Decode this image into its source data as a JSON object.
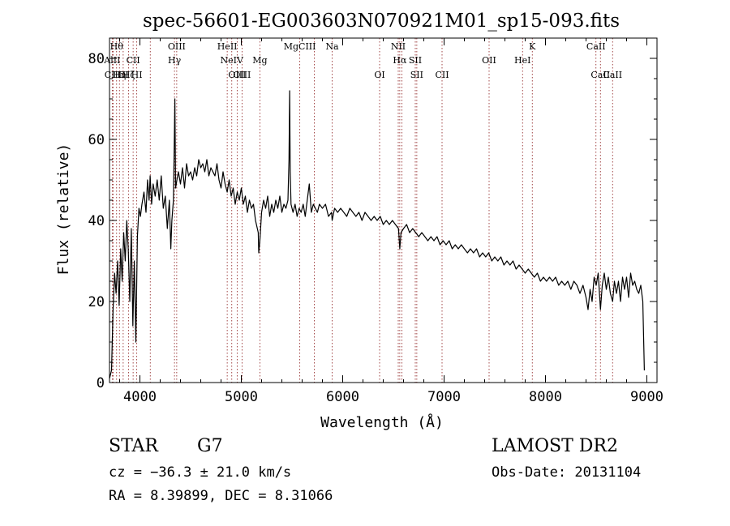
{
  "chart_data": {
    "type": "line",
    "title": "spec-56601-EG003603N070921M01_sp15-093.fits",
    "xlabel": "Wavelength (Å)",
    "ylabel": "Flux (relative)",
    "xlim": [
      3700,
      9100
    ],
    "ylim": [
      0,
      85
    ],
    "xticks": [
      4000,
      5000,
      6000,
      7000,
      8000,
      9000
    ],
    "yticks": [
      0,
      20,
      40,
      60,
      80
    ],
    "grid": false,
    "series": [
      {
        "color": "#000000",
        "points": [
          [
            3700,
            1
          ],
          [
            3720,
            3
          ],
          [
            3735,
            18
          ],
          [
            3750,
            27
          ],
          [
            3765,
            22
          ],
          [
            3780,
            30
          ],
          [
            3795,
            19
          ],
          [
            3810,
            33
          ],
          [
            3825,
            25
          ],
          [
            3840,
            37
          ],
          [
            3855,
            30
          ],
          [
            3870,
            40
          ],
          [
            3885,
            33
          ],
          [
            3900,
            20
          ],
          [
            3915,
            38
          ],
          [
            3930,
            14
          ],
          [
            3945,
            30
          ],
          [
            3960,
            10
          ],
          [
            3975,
            36
          ],
          [
            3990,
            43
          ],
          [
            4005,
            41
          ],
          [
            4020,
            44
          ],
          [
            4040,
            47
          ],
          [
            4060,
            42
          ],
          [
            4075,
            50
          ],
          [
            4090,
            45
          ],
          [
            4101,
            51
          ],
          [
            4115,
            44
          ],
          [
            4130,
            49
          ],
          [
            4150,
            46
          ],
          [
            4170,
            50
          ],
          [
            4190,
            45
          ],
          [
            4210,
            51
          ],
          [
            4230,
            43
          ],
          [
            4250,
            46
          ],
          [
            4270,
            38
          ],
          [
            4290,
            45
          ],
          [
            4305,
            33
          ],
          [
            4315,
            40
          ],
          [
            4330,
            45
          ],
          [
            4340,
            61
          ],
          [
            4345,
            70
          ],
          [
            4352,
            48
          ],
          [
            4365,
            50
          ],
          [
            4380,
            52
          ],
          [
            4400,
            49
          ],
          [
            4420,
            53
          ],
          [
            4440,
            48
          ],
          [
            4460,
            54
          ],
          [
            4480,
            51
          ],
          [
            4500,
            52
          ],
          [
            4520,
            50
          ],
          [
            4540,
            53
          ],
          [
            4560,
            51
          ],
          [
            4580,
            55
          ],
          [
            4600,
            53
          ],
          [
            4620,
            54
          ],
          [
            4640,
            52
          ],
          [
            4660,
            55
          ],
          [
            4680,
            51
          ],
          [
            4700,
            53
          ],
          [
            4720,
            52
          ],
          [
            4740,
            51
          ],
          [
            4760,
            54
          ],
          [
            4780,
            50
          ],
          [
            4800,
            48
          ],
          [
            4820,
            52
          ],
          [
            4840,
            49
          ],
          [
            4861,
            47
          ],
          [
            4880,
            50
          ],
          [
            4900,
            46
          ],
          [
            4920,
            48
          ],
          [
            4940,
            44
          ],
          [
            4960,
            47
          ],
          [
            4980,
            45
          ],
          [
            5000,
            48
          ],
          [
            5020,
            44
          ],
          [
            5040,
            46
          ],
          [
            5060,
            42
          ],
          [
            5080,
            45
          ],
          [
            5100,
            43
          ],
          [
            5120,
            44
          ],
          [
            5140,
            40
          ],
          [
            5167,
            37
          ],
          [
            5172,
            32
          ],
          [
            5183,
            35
          ],
          [
            5200,
            42
          ],
          [
            5220,
            45
          ],
          [
            5240,
            43
          ],
          [
            5260,
            46
          ],
          [
            5280,
            41
          ],
          [
            5300,
            44
          ],
          [
            5320,
            42
          ],
          [
            5340,
            45
          ],
          [
            5360,
            43
          ],
          [
            5380,
            46
          ],
          [
            5400,
            42
          ],
          [
            5420,
            44
          ],
          [
            5440,
            43
          ],
          [
            5460,
            45
          ],
          [
            5470,
            55
          ],
          [
            5477,
            72
          ],
          [
            5482,
            52
          ],
          [
            5490,
            44
          ],
          [
            5510,
            42
          ],
          [
            5530,
            44
          ],
          [
            5550,
            41
          ],
          [
            5570,
            43
          ],
          [
            5590,
            42
          ],
          [
            5610,
            44
          ],
          [
            5630,
            41
          ],
          [
            5650,
            45
          ],
          [
            5670,
            49
          ],
          [
            5690,
            42
          ],
          [
            5710,
            44
          ],
          [
            5730,
            43
          ],
          [
            5750,
            42
          ],
          [
            5770,
            44
          ],
          [
            5800,
            43
          ],
          [
            5830,
            44
          ],
          [
            5860,
            41
          ],
          [
            5890,
            42
          ],
          [
            5896,
            40
          ],
          [
            5920,
            43
          ],
          [
            5950,
            42
          ],
          [
            5980,
            43
          ],
          [
            6010,
            42
          ],
          [
            6040,
            41
          ],
          [
            6070,
            43
          ],
          [
            6100,
            42
          ],
          [
            6130,
            41
          ],
          [
            6160,
            42
          ],
          [
            6190,
            40
          ],
          [
            6220,
            42
          ],
          [
            6250,
            41
          ],
          [
            6280,
            40
          ],
          [
            6310,
            41
          ],
          [
            6340,
            40
          ],
          [
            6370,
            41
          ],
          [
            6400,
            39
          ],
          [
            6430,
            40
          ],
          [
            6460,
            39
          ],
          [
            6490,
            40
          ],
          [
            6520,
            39
          ],
          [
            6550,
            38
          ],
          [
            6563,
            33
          ],
          [
            6575,
            37
          ],
          [
            6600,
            38
          ],
          [
            6630,
            39
          ],
          [
            6660,
            37
          ],
          [
            6690,
            38
          ],
          [
            6720,
            37
          ],
          [
            6750,
            36
          ],
          [
            6780,
            37
          ],
          [
            6810,
            36
          ],
          [
            6840,
            35
          ],
          [
            6870,
            36
          ],
          [
            6900,
            35
          ],
          [
            6930,
            36
          ],
          [
            6960,
            34
          ],
          [
            6990,
            35
          ],
          [
            7020,
            34
          ],
          [
            7050,
            35
          ],
          [
            7080,
            33
          ],
          [
            7110,
            34
          ],
          [
            7140,
            33
          ],
          [
            7170,
            34
          ],
          [
            7200,
            33
          ],
          [
            7230,
            32
          ],
          [
            7260,
            33
          ],
          [
            7290,
            32
          ],
          [
            7320,
            33
          ],
          [
            7350,
            31
          ],
          [
            7380,
            32
          ],
          [
            7410,
            31
          ],
          [
            7440,
            32
          ],
          [
            7470,
            30
          ],
          [
            7500,
            31
          ],
          [
            7530,
            30
          ],
          [
            7560,
            31
          ],
          [
            7590,
            29
          ],
          [
            7620,
            30
          ],
          [
            7650,
            29
          ],
          [
            7680,
            30
          ],
          [
            7710,
            28
          ],
          [
            7740,
            29
          ],
          [
            7770,
            28
          ],
          [
            7800,
            27
          ],
          [
            7830,
            28
          ],
          [
            7860,
            27
          ],
          [
            7890,
            26
          ],
          [
            7920,
            27
          ],
          [
            7950,
            25
          ],
          [
            7980,
            26
          ],
          [
            8010,
            25
          ],
          [
            8040,
            26
          ],
          [
            8070,
            25
          ],
          [
            8100,
            26
          ],
          [
            8130,
            24
          ],
          [
            8160,
            25
          ],
          [
            8190,
            24
          ],
          [
            8220,
            25
          ],
          [
            8250,
            23
          ],
          [
            8280,
            25
          ],
          [
            8310,
            24
          ],
          [
            8340,
            22
          ],
          [
            8370,
            24
          ],
          [
            8400,
            21
          ],
          [
            8420,
            18
          ],
          [
            8440,
            23
          ],
          [
            8460,
            20
          ],
          [
            8480,
            26
          ],
          [
            8500,
            24
          ],
          [
            8520,
            27
          ],
          [
            8542,
            18
          ],
          [
            8560,
            24
          ],
          [
            8580,
            27
          ],
          [
            8600,
            23
          ],
          [
            8620,
            26
          ],
          [
            8640,
            22
          ],
          [
            8662,
            20
          ],
          [
            8680,
            25
          ],
          [
            8700,
            22
          ],
          [
            8720,
            25
          ],
          [
            8740,
            20
          ],
          [
            8760,
            26
          ],
          [
            8780,
            23
          ],
          [
            8800,
            26
          ],
          [
            8820,
            21
          ],
          [
            8840,
            27
          ],
          [
            8860,
            24
          ],
          [
            8880,
            25
          ],
          [
            8900,
            23
          ],
          [
            8920,
            22
          ],
          [
            8940,
            24
          ],
          [
            8960,
            20
          ],
          [
            8975,
            3
          ]
        ]
      }
    ],
    "lines": [
      {
        "x": 3727,
        "row": 2,
        "label": "AlII"
      },
      {
        "x": 3736,
        "row": 3,
        "label": "CIII"
      },
      {
        "x": 3770,
        "row": 1,
        "label": "Hθ"
      },
      {
        "x": 3798,
        "row": 3,
        "label": "Hη"
      },
      {
        "x": 3835,
        "row": 3,
        "label": "OI"
      },
      {
        "x": 3889,
        "row": 3,
        "label": "Hζ"
      },
      {
        "x": 3933,
        "row": 2,
        "label": "CII"
      },
      {
        "x": 3969,
        "row": 3,
        "label": "HI"
      },
      {
        "x": 4102,
        "row": 0,
        "label": ""
      },
      {
        "x": 4341,
        "row": 2,
        "label": "Hγ"
      },
      {
        "x": 4363,
        "row": 1,
        "label": "OIII"
      },
      {
        "x": 4861,
        "row": 1,
        "label": "HeII"
      },
      {
        "x": 4906,
        "row": 2,
        "label": "NeIV"
      },
      {
        "x": 4959,
        "row": 3,
        "label": "OIII"
      },
      {
        "x": 5007,
        "row": 3,
        "label": "OIII"
      },
      {
        "x": 5183,
        "row": 2,
        "label": "Mg"
      },
      {
        "x": 5577,
        "row": 1,
        "label": "MgCIII"
      },
      {
        "x": 5720,
        "row": 1,
        "label": ""
      },
      {
        "x": 5896,
        "row": 1,
        "label": "Na"
      },
      {
        "x": 6364,
        "row": 3,
        "label": "OI"
      },
      {
        "x": 6548,
        "row": 1,
        "label": "NII"
      },
      {
        "x": 6563,
        "row": 2,
        "label": "Hα"
      },
      {
        "x": 6583,
        "row": 0,
        "label": ""
      },
      {
        "x": 6716,
        "row": 2,
        "label": "SII"
      },
      {
        "x": 6731,
        "row": 3,
        "label": "SII"
      },
      {
        "x": 6980,
        "row": 3,
        "label": "CII"
      },
      {
        "x": 7444,
        "row": 2,
        "label": "OII"
      },
      {
        "x": 7774,
        "row": 2,
        "label": "HeI"
      },
      {
        "x": 7870,
        "row": 1,
        "label": "K"
      },
      {
        "x": 8498,
        "row": 1,
        "label": "CaII"
      },
      {
        "x": 8542,
        "row": 3,
        "label": "CaII"
      },
      {
        "x": 8662,
        "row": 3,
        "label": "CaII"
      }
    ]
  },
  "footer": {
    "class_label": "STAR",
    "subclass": "G7",
    "survey": "LAMOST DR2",
    "cz": "cz = −36.3 ± 21.0 km/s",
    "obs_date": "Obs-Date: 20131104",
    "radec": "RA =   8.39899, DEC =   8.31066"
  }
}
